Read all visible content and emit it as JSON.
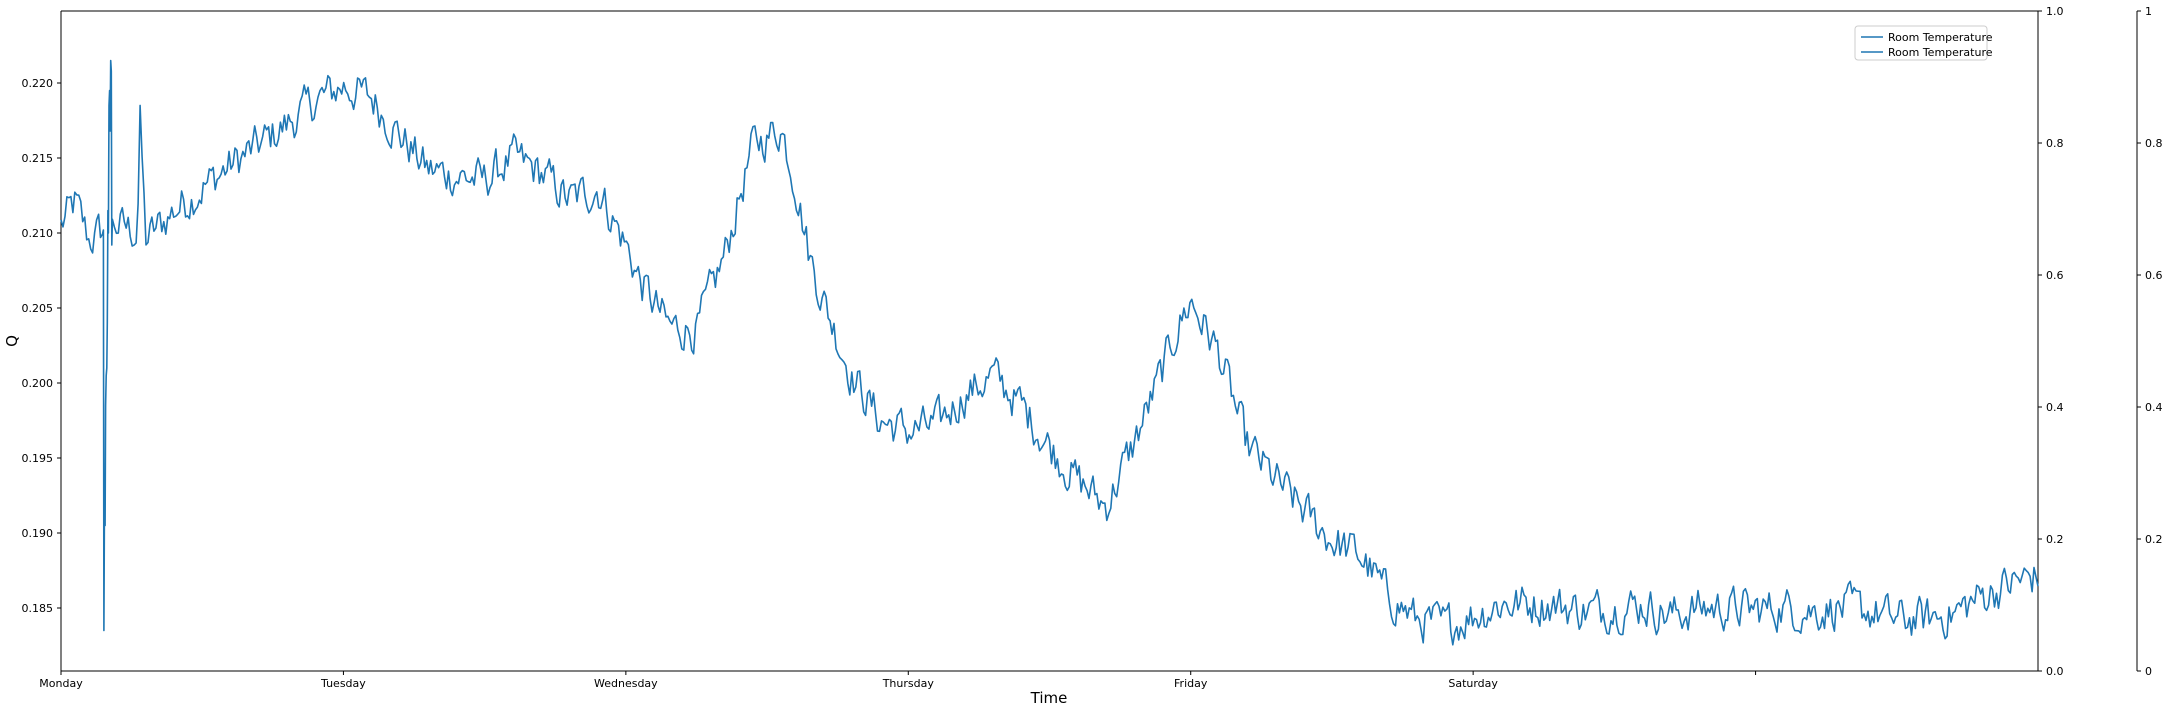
{
  "chart_data": {
    "type": "line",
    "title": "",
    "xlabel": "Time",
    "ylabel": "Q",
    "x_tick_labels": [
      "Monday",
      "Tuesday",
      "Wednesday",
      "Thursday",
      "Friday",
      "Saturday",
      ""
    ],
    "x_range_days": [
      0,
      7
    ],
    "ylim": [
      0.1808,
      0.2248
    ],
    "y_ticks": [
      "0.185",
      "0.190",
      "0.195",
      "0.200",
      "0.205",
      "0.210",
      "0.215",
      "0.220"
    ],
    "right_axis_1": {
      "ylim": [
        0,
        1
      ],
      "ticks": [
        "0.0",
        "0.2",
        "0.4",
        "0.6",
        "0.8",
        "1.0"
      ]
    },
    "right_axis_2": {
      "ylim": [
        0,
        1
      ],
      "ticks": [
        "0",
        "0.2",
        "0.4",
        "0.6",
        "0.8",
        "1"
      ]
    },
    "grid": false,
    "legend_position": "top-right",
    "legend": [
      "Room Temperature",
      "Room Temperature"
    ],
    "series": [
      {
        "name": "Room Temperature",
        "color": "#1f77b4",
        "trend_x": [
          0.0,
          0.05,
          0.1,
          0.15,
          0.2,
          0.27,
          0.28,
          0.3,
          0.4,
          0.6,
          0.8,
          0.9,
          1.0,
          1.1,
          1.2,
          1.3,
          1.4,
          1.5,
          1.6,
          1.7,
          1.8,
          1.9,
          2.0,
          2.05,
          2.15,
          2.25,
          2.35,
          2.45,
          2.55,
          2.6,
          2.65,
          2.7,
          2.8,
          2.9,
          3.0,
          3.1,
          3.2,
          3.3,
          3.4,
          3.5,
          3.6,
          3.7,
          3.8,
          3.9,
          3.95,
          4.0,
          4.1,
          4.2,
          4.3,
          4.4,
          4.5,
          4.6,
          4.7,
          4.8,
          4.9,
          5.0,
          5.1,
          5.2,
          5.3,
          5.4,
          5.5,
          5.6,
          5.7,
          5.8,
          5.9,
          6.0,
          6.1,
          6.2,
          6.3,
          6.4,
          6.5,
          6.6,
          6.7,
          6.8,
          6.9,
          7.0
        ],
        "trend_y": [
          0.2105,
          0.212,
          0.2095,
          0.2102,
          0.2106,
          0.21,
          0.2175,
          0.2095,
          0.2115,
          0.2145,
          0.2172,
          0.2188,
          0.2198,
          0.219,
          0.2165,
          0.2142,
          0.2138,
          0.2135,
          0.215,
          0.214,
          0.2122,
          0.213,
          0.2092,
          0.2068,
          0.2038,
          0.2035,
          0.2085,
          0.2158,
          0.217,
          0.2135,
          0.2085,
          0.2055,
          0.2005,
          0.1975,
          0.1968,
          0.1972,
          0.1992,
          0.2005,
          0.1985,
          0.1958,
          0.1935,
          0.1918,
          0.196,
          0.2008,
          0.2035,
          0.2055,
          0.202,
          0.1958,
          0.1935,
          0.1915,
          0.1895,
          0.1885,
          0.1858,
          0.1842,
          0.1838,
          0.1845,
          0.1853,
          0.1853,
          0.1852,
          0.1848,
          0.185,
          0.1852,
          0.1845,
          0.185,
          0.185,
          0.1849,
          0.185,
          0.1848,
          0.185,
          0.1848,
          0.1842,
          0.1843,
          0.1846,
          0.1858,
          0.1866,
          0.1872
        ],
        "spike_x": [
          0.15,
          0.152,
          0.154,
          0.156,
          0.158,
          0.16,
          0.162,
          0.164,
          0.166,
          0.168,
          0.17,
          0.172,
          0.174,
          0.176,
          0.178,
          0.18
        ],
        "spike_y": [
          0.2102,
          0.1835,
          0.1925,
          0.1905,
          0.1985,
          0.2005,
          0.201,
          0.204,
          0.2115,
          0.21,
          0.2185,
          0.2195,
          0.2168,
          0.2215,
          0.2208,
          0.2092
        ],
        "noise_amplitude": 0.0022
      }
    ]
  }
}
